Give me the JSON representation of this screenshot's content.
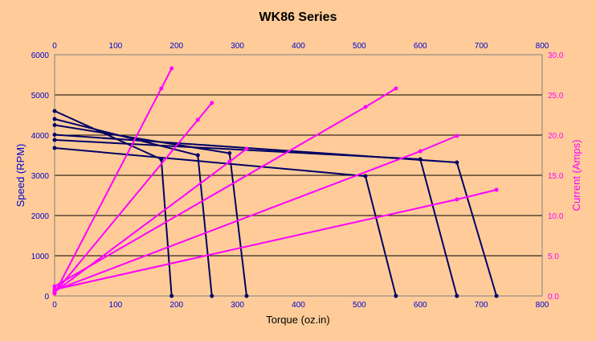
{
  "colors": {
    "background": "#FFCC99",
    "speed_series": "#000066",
    "current_series": "#FF00FF",
    "left_axis_text": "#0000CC",
    "right_axis_text": "#FF00FF",
    "grid": "#000000"
  },
  "chart_data": {
    "type": "line",
    "title": "WK86 Series",
    "xlabel": "Torque (oz.in)",
    "ylabel": "Speed (RPM)",
    "y2label": "Current (Amps)",
    "xlim": [
      0,
      800
    ],
    "ylim": [
      0,
      6000
    ],
    "y2lim": [
      0,
      30
    ],
    "x_ticks": [
      "0",
      "100",
      "200",
      "300",
      "400",
      "500",
      "600",
      "700",
      "800"
    ],
    "y_ticks": [
      "0",
      "1000",
      "2000",
      "3000",
      "4000",
      "5000",
      "6000"
    ],
    "y2_ticks": [
      "0.0",
      "5.0",
      "10.0",
      "15.0",
      "20.0",
      "25.0",
      "30.0"
    ],
    "grid": true,
    "legend": "none",
    "speed_series": [
      {
        "x": [
          0,
          175,
          192
        ],
        "y": [
          4600,
          3400,
          0
        ]
      },
      {
        "x": [
          0,
          235,
          258
        ],
        "y": [
          4400,
          3500,
          0
        ]
      },
      {
        "x": [
          0,
          287,
          315
        ],
        "y": [
          4250,
          3550,
          0
        ]
      },
      {
        "x": [
          0,
          510,
          560
        ],
        "y": [
          3680,
          2980,
          0
        ]
      },
      {
        "x": [
          0,
          600,
          660
        ],
        "y": [
          3880,
          3400,
          0
        ]
      },
      {
        "x": [
          0,
          660,
          725
        ],
        "y": [
          4010,
          3320,
          0
        ]
      }
    ],
    "current_series": [
      {
        "x": [
          0,
          175,
          192
        ],
        "y": [
          0.3,
          25.8,
          28.3
        ]
      },
      {
        "x": [
          0,
          235,
          258
        ],
        "y": [
          0.4,
          21.9,
          24.0
        ]
      },
      {
        "x": [
          0,
          287,
          315
        ],
        "y": [
          0.5,
          16.7,
          18.3
        ]
      },
      {
        "x": [
          0,
          510,
          560
        ],
        "y": [
          1.2,
          23.5,
          25.8
        ]
      },
      {
        "x": [
          0,
          600,
          660
        ],
        "y": [
          0.7,
          18.0,
          19.9
        ]
      },
      {
        "x": [
          0,
          660,
          725
        ],
        "y": [
          0.8,
          12.0,
          13.2
        ]
      }
    ]
  }
}
